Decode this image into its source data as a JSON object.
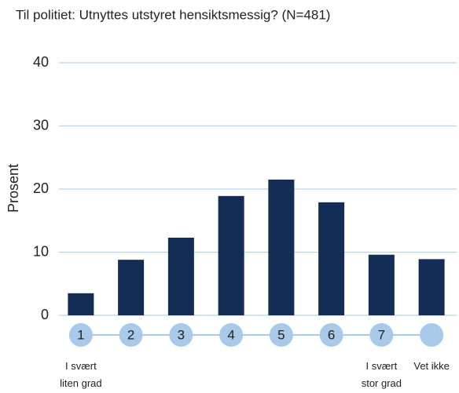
{
  "chart_data": {
    "type": "bar",
    "title": "Til politiet: Utnyttes utstyret hensiktsmessig? (N=481)",
    "y_label": "Prosent",
    "categories": [
      "1",
      "2",
      "3",
      "4",
      "5",
      "6",
      "7",
      null
    ],
    "category_notes": [
      "I svært liten grad",
      null,
      null,
      null,
      null,
      null,
      "I svært stor grad",
      "Vet ikke"
    ],
    "values": [
      3.5,
      8.8,
      12.3,
      18.9,
      21.5,
      17.9,
      9.6,
      8.9
    ],
    "color": "#142d54",
    "marker_color": "#a9c9e8",
    "ylim": [
      0,
      40
    ],
    "yticks": [
      0,
      10,
      20,
      30,
      40
    ],
    "grid": true
  }
}
